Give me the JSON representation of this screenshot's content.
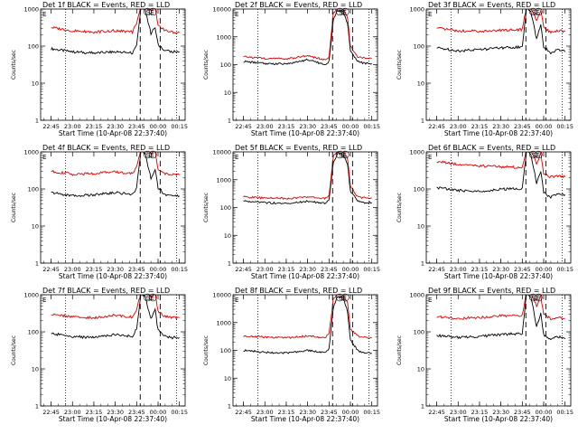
{
  "colors": {
    "events": "#000000",
    "lld": "#dd0000",
    "axes": "#000000",
    "background": "#ffffff"
  },
  "chart_data": [
    {
      "type": "line",
      "title": "Det 1f BLACK = Events, RED = LLD",
      "xlabel": "Start Time (10-Apr-08 22:37:40)",
      "ylabel": "Counts/sec",
      "x_tick_labels": [
        "22:45",
        "23:00",
        "23:15",
        "23:30",
        "23:45",
        "00:00",
        "00:15"
      ],
      "y_tick_labels": [
        "1",
        "10",
        "100",
        "1000"
      ],
      "ylim": [
        1,
        1000
      ],
      "log_y": true,
      "annotations": [
        {
          "text": "E"
        },
        {
          "text": "SE"
        }
      ],
      "series": [
        {
          "name": "BLACK = Events",
          "x": [
            "22:45",
            "23:00",
            "23:15",
            "23:30",
            "23:42",
            "23:45",
            "23:48",
            "23:51",
            "23:55",
            "23:58",
            "00:00",
            "00:05",
            "00:10",
            "00:15"
          ],
          "y": [
            85,
            70,
            65,
            70,
            65,
            105,
            1100,
            900,
            220,
            320,
            110,
            75,
            70,
            70
          ]
        },
        {
          "name": "RED = LLD",
          "x": [
            "22:45",
            "23:00",
            "23:15",
            "23:30",
            "23:42",
            "23:45",
            "23:48",
            "23:51",
            "23:55",
            "23:58",
            "00:00",
            "00:05",
            "00:10",
            "00:15"
          ],
          "y": [
            320,
            260,
            240,
            260,
            240,
            420,
            1200,
            1100,
            900,
            1100,
            360,
            260,
            240,
            240
          ]
        }
      ]
    },
    {
      "type": "line",
      "title": "Det 2f BLACK = Events, RED = LLD",
      "xlabel": "Start Time (10-Apr-08 22:37:40)",
      "ylabel": "Counts/sec",
      "x_tick_labels": [
        "22:45",
        "23:00",
        "23:15",
        "23:30",
        "23:45",
        "00:00",
        "00:15"
      ],
      "y_tick_labels": [
        "1",
        "10",
        "100",
        "1000",
        "10000"
      ],
      "ylim": [
        1,
        10000
      ],
      "log_y": true,
      "annotations": [
        {
          "text": "E"
        },
        {
          "text": "SE"
        }
      ],
      "series": [
        {
          "name": "BLACK = Events",
          "x": [
            "22:45",
            "23:00",
            "23:15",
            "23:30",
            "23:42",
            "23:45",
            "23:48",
            "23:51",
            "23:55",
            "23:58",
            "00:00",
            "00:05",
            "00:10",
            "00:15"
          ],
          "y": [
            130,
            110,
            105,
            150,
            100,
            130,
            4000,
            9000,
            8000,
            3000,
            300,
            130,
            110,
            110
          ]
        },
        {
          "name": "RED = LLD",
          "x": [
            "22:45",
            "23:00",
            "23:15",
            "23:30",
            "23:42",
            "23:45",
            "23:48",
            "23:51",
            "23:55",
            "23:58",
            "00:00",
            "00:05",
            "00:10",
            "00:15"
          ],
          "y": [
            190,
            170,
            160,
            210,
            150,
            190,
            7000,
            11000,
            10000,
            5000,
            450,
            190,
            170,
            170
          ]
        }
      ]
    },
    {
      "type": "line",
      "title": "Det 3f BLACK = Events, RED = LLD",
      "xlabel": "Start Time (10-Apr-08 22:37:40)",
      "ylabel": "Counts/sec",
      "x_tick_labels": [
        "22:45",
        "23:00",
        "23:15",
        "23:30",
        "23:45",
        "00:00",
        "00:15"
      ],
      "y_tick_labels": [
        "1",
        "10",
        "100",
        "1000"
      ],
      "ylim": [
        1,
        1000
      ],
      "log_y": true,
      "annotations": [
        {
          "text": "E"
        },
        {
          "text": "SE"
        }
      ],
      "series": [
        {
          "name": "BLACK = Events",
          "x": [
            "22:45",
            "23:00",
            "23:15",
            "23:30",
            "23:45",
            "23:48",
            "23:51",
            "23:55",
            "23:58",
            "00:00",
            "00:05",
            "00:10",
            "00:15"
          ],
          "y": [
            90,
            75,
            80,
            90,
            95,
            1100,
            900,
            150,
            380,
            95,
            65,
            85,
            70
          ]
        },
        {
          "name": "RED = LLD",
          "x": [
            "22:45",
            "23:00",
            "23:15",
            "23:30",
            "23:45",
            "23:48",
            "23:51",
            "23:55",
            "23:58",
            "00:00",
            "00:05",
            "00:10",
            "00:15"
          ],
          "y": [
            300,
            260,
            250,
            270,
            280,
            1200,
            1100,
            500,
            900,
            330,
            230,
            260,
            250
          ]
        }
      ]
    },
    {
      "type": "line",
      "title": "Det 4f BLACK = Events, RED = LLD",
      "xlabel": "Start Time (10-Apr-08 22:37:40)",
      "ylabel": "Counts/sec",
      "x_tick_labels": [
        "22:45",
        "23:00",
        "23:15",
        "23:30",
        "23:45",
        "00:00",
        "00:15"
      ],
      "y_tick_labels": [
        "1",
        "10",
        "100",
        "1000"
      ],
      "ylim": [
        1,
        1000
      ],
      "log_y": true,
      "annotations": [
        {
          "text": "E"
        },
        {
          "text": "SE"
        }
      ],
      "series": [
        {
          "name": "BLACK = Events",
          "x": [
            "22:45",
            "23:00",
            "23:15",
            "23:30",
            "23:42",
            "23:45",
            "23:48",
            "23:51",
            "23:55",
            "23:58",
            "00:00",
            "00:05",
            "00:10",
            "00:15"
          ],
          "y": [
            80,
            65,
            70,
            80,
            70,
            110,
            1100,
            900,
            200,
            350,
            110,
            70,
            70,
            65
          ]
        },
        {
          "name": "RED = LLD",
          "x": [
            "22:45",
            "23:00",
            "23:15",
            "23:30",
            "23:42",
            "23:45",
            "23:48",
            "23:51",
            "23:55",
            "23:58",
            "00:00",
            "00:05",
            "00:10",
            "00:15"
          ],
          "y": [
            300,
            250,
            260,
            290,
            260,
            400,
            1200,
            1100,
            900,
            1100,
            350,
            260,
            250,
            240
          ]
        }
      ]
    },
    {
      "type": "line",
      "title": "Det 5f BLACK = Events, RED = LLD",
      "xlabel": "Start Time (10-Apr-08 22:37:40)",
      "ylabel": "Counts/sec",
      "x_tick_labels": [
        "22:45",
        "23:00",
        "23:15",
        "23:30",
        "23:45",
        "00:00",
        "00:15"
      ],
      "y_tick_labels": [
        "1",
        "10",
        "100",
        "1000",
        "10000"
      ],
      "ylim": [
        1,
        10000
      ],
      "log_y": true,
      "annotations": [
        {
          "text": "E"
        },
        {
          "text": "SE"
        }
      ],
      "series": [
        {
          "name": "BLACK = Events",
          "x": [
            "22:45",
            "23:00",
            "23:15",
            "23:30",
            "23:42",
            "23:45",
            "23:48",
            "23:51",
            "23:55",
            "23:58",
            "00:00",
            "00:05",
            "00:10",
            "00:15"
          ],
          "y": [
            170,
            150,
            140,
            170,
            140,
            180,
            4000,
            9000,
            8000,
            3500,
            400,
            170,
            150,
            150
          ]
        },
        {
          "name": "RED = LLD",
          "x": [
            "22:45",
            "23:00",
            "23:15",
            "23:30",
            "23:42",
            "23:45",
            "23:48",
            "23:51",
            "23:55",
            "23:58",
            "00:00",
            "00:05",
            "00:10",
            "00:15"
          ],
          "y": [
            240,
            220,
            210,
            240,
            210,
            260,
            7000,
            11000,
            10000,
            6000,
            600,
            240,
            220,
            220
          ]
        }
      ]
    },
    {
      "type": "line",
      "title": "Det 6f BLACK = Events, RED = LLD",
      "xlabel": "Start Time (10-Apr-08 22:37:40)",
      "ylabel": "Counts/sec",
      "x_tick_labels": [
        "22:45",
        "23:00",
        "23:15",
        "23:30",
        "23:45",
        "00:00",
        "00:15"
      ],
      "y_tick_labels": [
        "1",
        "10",
        "100",
        "1000"
      ],
      "ylim": [
        1,
        1000
      ],
      "log_y": true,
      "annotations": [
        {
          "text": "E"
        },
        {
          "text": "SE"
        }
      ],
      "series": [
        {
          "name": "BLACK = Events",
          "x": [
            "22:45",
            "23:00",
            "23:15",
            "23:30",
            "23:45",
            "23:48",
            "23:51",
            "23:55",
            "23:58",
            "00:00",
            "00:05",
            "00:10",
            "00:15"
          ],
          "y": [
            110,
            90,
            85,
            100,
            100,
            1100,
            900,
            140,
            300,
            80,
            60,
            75,
            70
          ]
        },
        {
          "name": "RED = LLD",
          "x": [
            "22:45",
            "23:00",
            "23:15",
            "23:30",
            "23:45",
            "23:48",
            "23:51",
            "23:55",
            "23:58",
            "00:00",
            "00:05",
            "00:10",
            "00:15"
          ],
          "y": [
            550,
            460,
            420,
            400,
            380,
            1200,
            1100,
            500,
            900,
            260,
            210,
            220,
            210
          ]
        }
      ]
    },
    {
      "type": "line",
      "title": "Det 7f BLACK = Events, RED = LLD",
      "xlabel": "Start Time (10-Apr-08 22:37:40)",
      "ylabel": "Counts/sec",
      "x_tick_labels": [
        "22:45",
        "23:00",
        "23:15",
        "23:30",
        "23:45",
        "00:00",
        "00:15"
      ],
      "y_tick_labels": [
        "1",
        "10",
        "100",
        "1000"
      ],
      "ylim": [
        1,
        1000
      ],
      "log_y": true,
      "annotations": [
        {
          "text": "E"
        },
        {
          "text": "SE"
        }
      ],
      "series": [
        {
          "name": "BLACK = Events",
          "x": [
            "22:45",
            "23:00",
            "23:15",
            "23:30",
            "23:42",
            "23:45",
            "23:48",
            "23:51",
            "23:55",
            "23:58",
            "00:00",
            "00:05",
            "00:10",
            "00:15"
          ],
          "y": [
            90,
            75,
            70,
            85,
            75,
            120,
            1100,
            900,
            220,
            380,
            110,
            75,
            70,
            70
          ]
        },
        {
          "name": "RED = LLD",
          "x": [
            "22:45",
            "23:00",
            "23:15",
            "23:30",
            "23:42",
            "23:45",
            "23:48",
            "23:51",
            "23:55",
            "23:58",
            "00:00",
            "00:05",
            "00:10",
            "00:15"
          ],
          "y": [
            300,
            250,
            240,
            280,
            250,
            400,
            1200,
            1100,
            900,
            1100,
            350,
            260,
            240,
            240
          ]
        }
      ]
    },
    {
      "type": "line",
      "title": "Det 8f BLACK = Events, RED = LLD",
      "xlabel": "Start Time (10-Apr-08 22:37:40)",
      "ylabel": "Counts/sec",
      "x_tick_labels": [
        "22:45",
        "23:00",
        "23:15",
        "23:30",
        "23:45",
        "00:00",
        "00:15"
      ],
      "y_tick_labels": [
        "1",
        "10",
        "100",
        "1000",
        "10000"
      ],
      "ylim": [
        1,
        10000
      ],
      "log_y": true,
      "annotations": [
        {
          "text": "E"
        },
        {
          "text": "SE"
        }
      ],
      "series": [
        {
          "name": "BLACK = Events",
          "x": [
            "22:45",
            "23:00",
            "23:15",
            "23:30",
            "23:42",
            "23:45",
            "23:48",
            "23:51",
            "23:55",
            "23:58",
            "00:00",
            "00:05",
            "00:10",
            "00:15"
          ],
          "y": [
            100,
            85,
            80,
            100,
            80,
            110,
            3500,
            8500,
            7500,
            2500,
            250,
            100,
            80,
            80
          ]
        },
        {
          "name": "RED = LLD",
          "x": [
            "22:45",
            "23:00",
            "23:15",
            "23:30",
            "23:42",
            "23:45",
            "23:48",
            "23:51",
            "23:55",
            "23:58",
            "00:00",
            "00:05",
            "00:10",
            "00:15"
          ],
          "y": [
            330,
            300,
            280,
            330,
            280,
            380,
            7000,
            11000,
            10000,
            5000,
            600,
            330,
            290,
            280
          ]
        }
      ]
    },
    {
      "type": "line",
      "title": "Det 9f BLACK = Events, RED = LLD",
      "xlabel": "Start Time (10-Apr-08 22:37:40)",
      "ylabel": "Counts/sec",
      "x_tick_labels": [
        "22:45",
        "23:00",
        "23:15",
        "23:30",
        "23:45",
        "00:00",
        "00:15"
      ],
      "y_tick_labels": [
        "1",
        "10",
        "100",
        "1000"
      ],
      "ylim": [
        1,
        1000
      ],
      "log_y": true,
      "annotations": [
        {
          "text": "E"
        },
        {
          "text": "SE"
        }
      ],
      "series": [
        {
          "name": "BLACK = Events",
          "x": [
            "22:45",
            "23:00",
            "23:15",
            "23:30",
            "23:45",
            "23:48",
            "23:51",
            "23:55",
            "23:58",
            "00:00",
            "00:05",
            "00:10",
            "00:15"
          ],
          "y": [
            80,
            70,
            75,
            85,
            90,
            1100,
            900,
            140,
            320,
            85,
            60,
            75,
            65
          ]
        },
        {
          "name": "RED = LLD",
          "x": [
            "22:45",
            "23:00",
            "23:15",
            "23:30",
            "23:45",
            "23:48",
            "23:51",
            "23:55",
            "23:58",
            "00:00",
            "00:05",
            "00:10",
            "00:15"
          ],
          "y": [
            260,
            230,
            240,
            270,
            280,
            1200,
            1100,
            500,
            900,
            300,
            220,
            240,
            230
          ]
        }
      ]
    }
  ]
}
